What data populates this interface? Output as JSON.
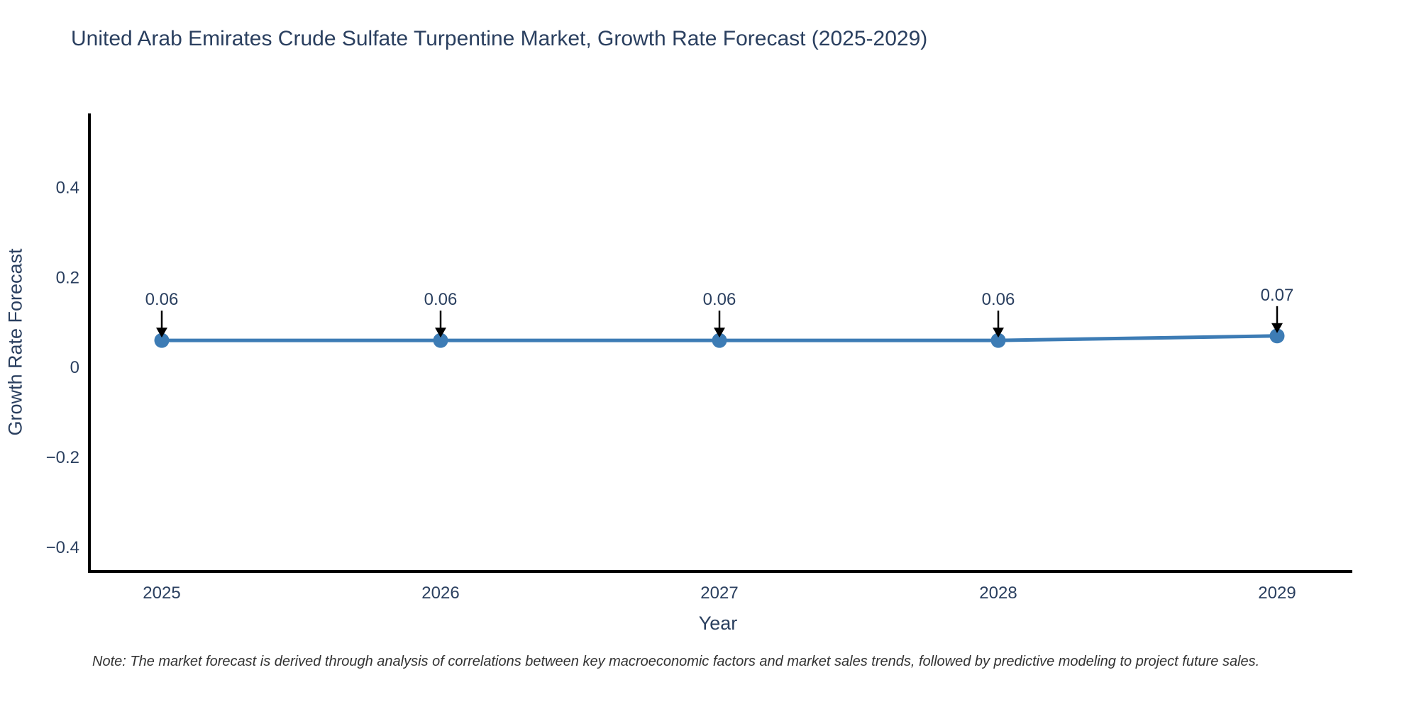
{
  "title": {
    "text": "United Arab Emirates Crude Sulfate Turpentine Market, Growth Rate Forecast (2025-2029)",
    "color": "#2a3f5f"
  },
  "note": {
    "text": "Note: The market forecast is derived through analysis of correlations between key macroeconomic factors and market sales trends, followed by predictive modeling to project future sales."
  },
  "chart_data": {
    "type": "line",
    "title": "United Arab Emirates Crude Sulfate Turpentine Market, Growth Rate Forecast (2025-2029)",
    "x": [
      2025,
      2026,
      2027,
      2028,
      2029
    ],
    "categories": [
      "2025",
      "2026",
      "2027",
      "2028",
      "2029"
    ],
    "series": [
      {
        "name": "Growth Rate Forecast",
        "values": [
          0.06,
          0.06,
          0.06,
          0.06,
          0.07
        ],
        "point_labels": [
          "0.06",
          "0.06",
          "0.06",
          "0.06",
          "0.07"
        ]
      }
    ],
    "xlabel": "Year",
    "ylabel": "Growth Rate Forecast",
    "y_ticks": [
      0.4,
      0.2,
      0,
      -0.2,
      -0.4
    ],
    "y_tick_labels": [
      "0.4",
      "0.2",
      "0",
      "−0.2",
      "−0.4"
    ],
    "ylim": [
      -0.454,
      0.565
    ],
    "grid": false,
    "legend_position": "none",
    "annotations_style": "value-label-with-down-arrow-at-each-point",
    "colors": {
      "line": "#3d7cb5",
      "marker": "#3d7cb5",
      "axis": "#000000",
      "text": "#2a3f5f",
      "arrow": "#000000",
      "note_text": "#333333",
      "background": "#ffffff"
    }
  }
}
